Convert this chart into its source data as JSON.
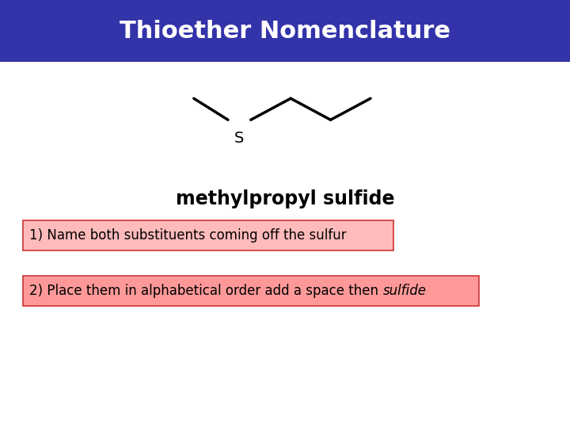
{
  "title": "Thioether Nomenclature",
  "title_bg_color": "#3333AA",
  "title_text_color": "#FFFFFF",
  "title_fontsize": 22,
  "bg_color": "#FFFFFF",
  "compound_name": "methylpropyl sulfide",
  "compound_name_fontsize": 17,
  "step1_text": "1) Name both substituents coming off the sulfur",
  "step2_text_regular": "2) Place them in alphabetical order add a space then ",
  "step2_italic": "sulfide",
  "step_fontsize": 12,
  "step1_box_color": "#FFBBBB",
  "step2_box_color": "#FF9999",
  "box_edge_color": "#CC3333",
  "line_color": "#000000",
  "line_width": 2.5
}
